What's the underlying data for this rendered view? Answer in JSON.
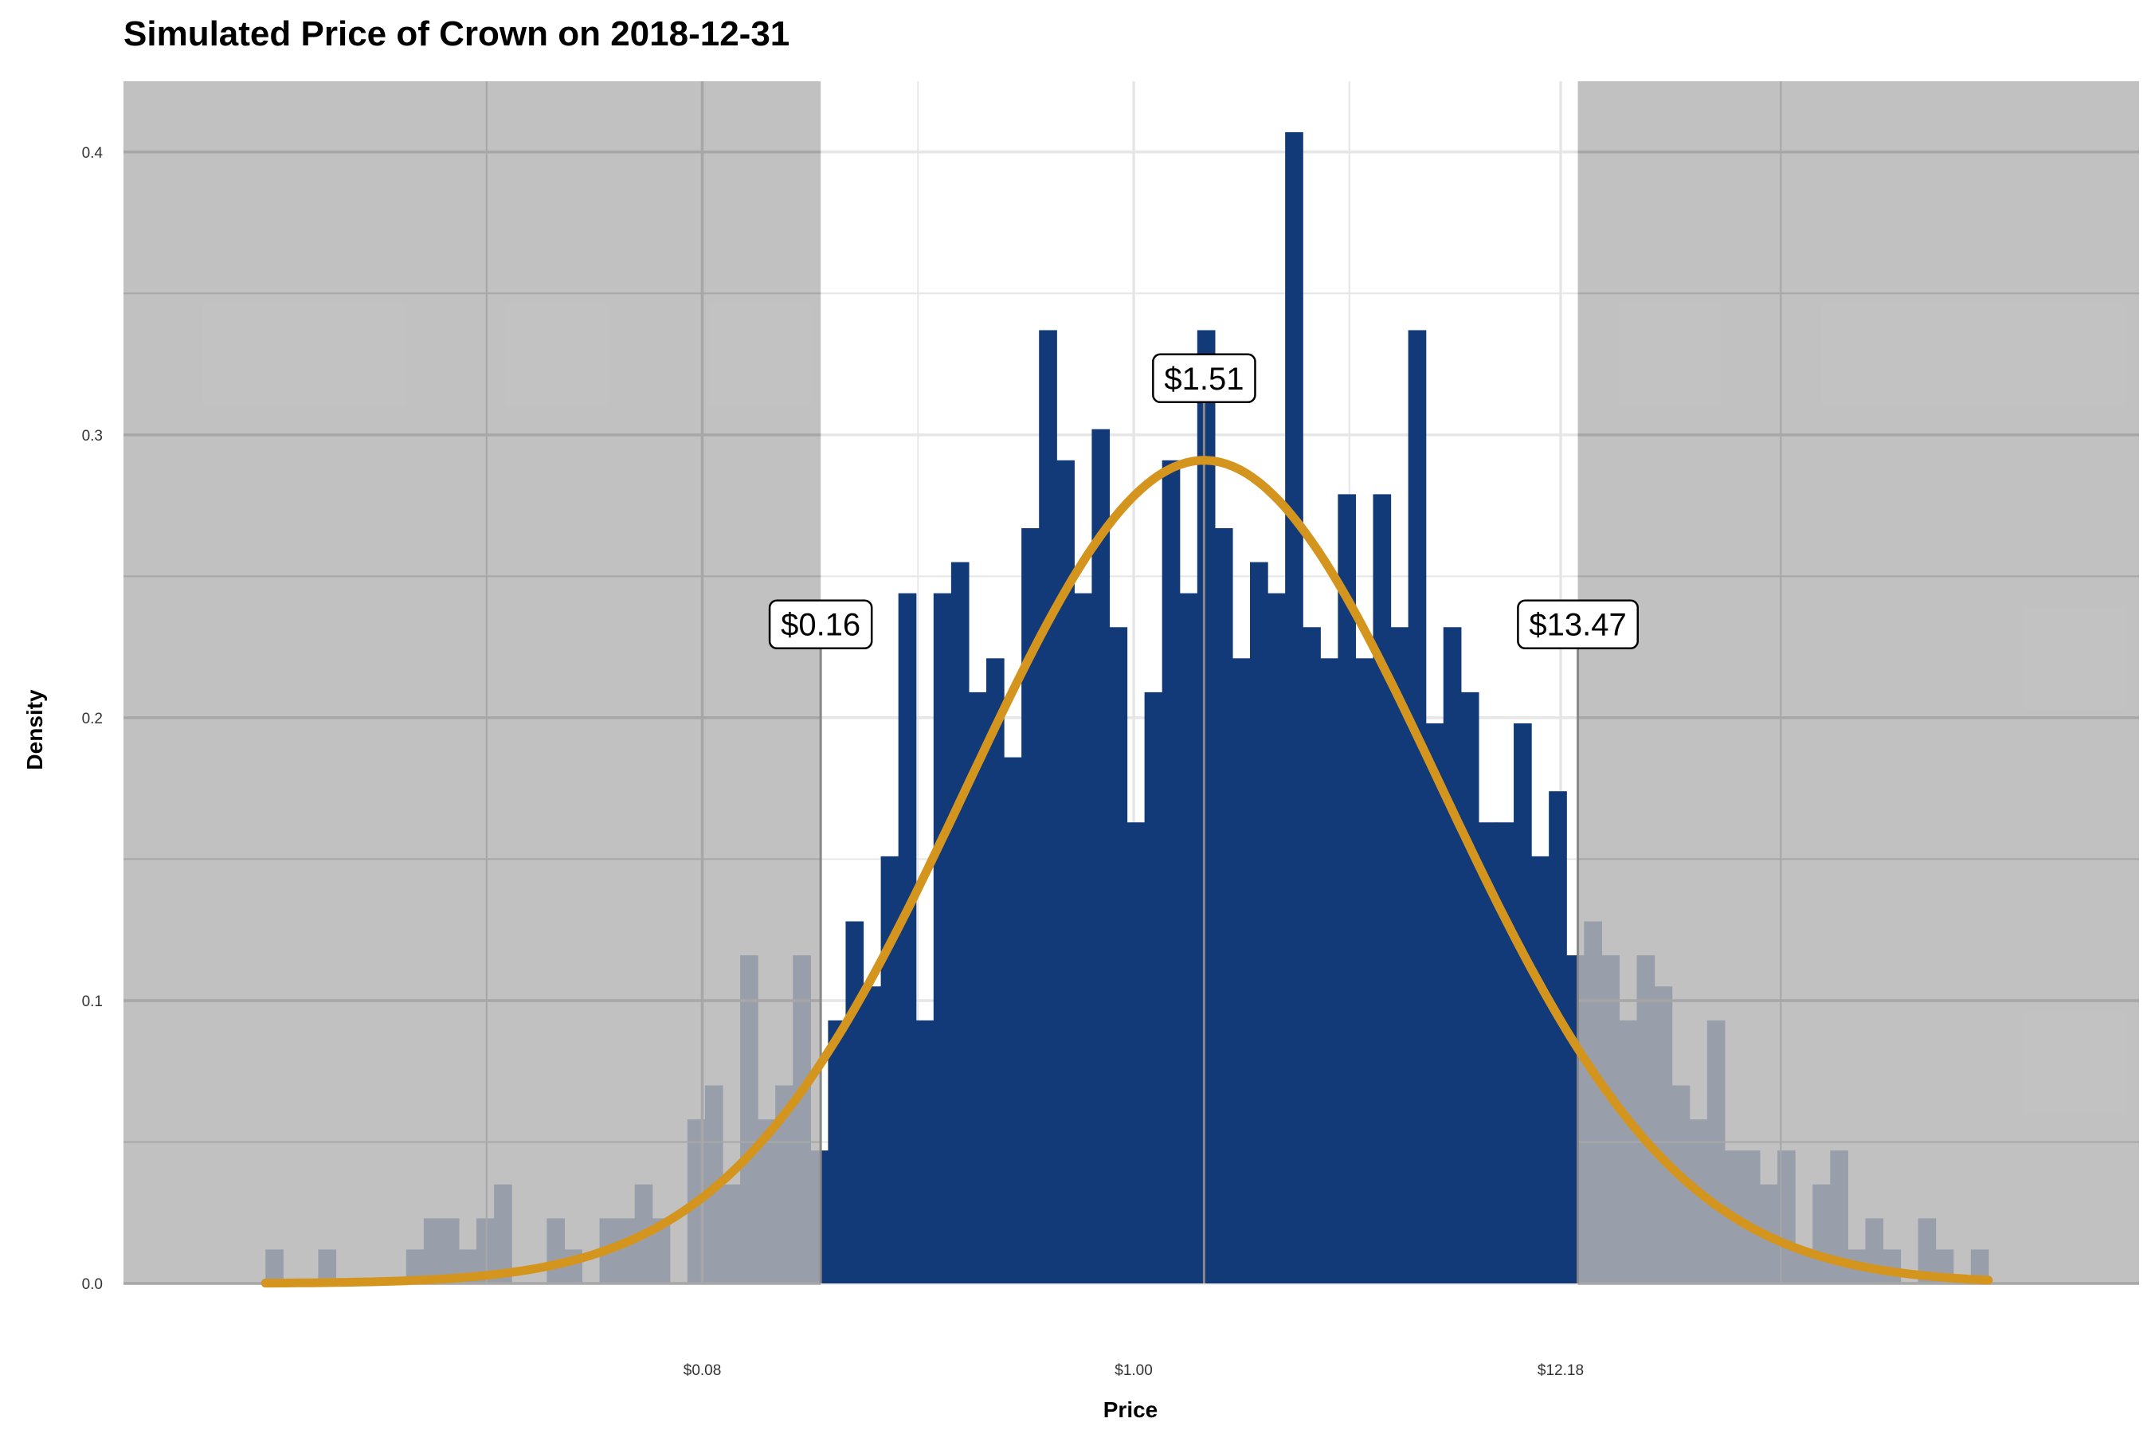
{
  "chart_data": {
    "type": "bar",
    "title": "Simulated Price of Crown on 2018-12-31",
    "xlabel": "Price",
    "ylabel": "Density",
    "ylim": [
      0,
      0.425
    ],
    "log_scale_x": true,
    "y_ticks": [
      "0.0",
      "0.1",
      "0.2",
      "0.3",
      "0.4"
    ],
    "x_ticks": [
      {
        "label": "$0.08",
        "value": 0.08
      },
      {
        "label": "$1.00",
        "value": 1.0
      },
      {
        "label": "$12.18",
        "value": 12.18
      }
    ],
    "x_range": [
      0.0027,
      360
    ],
    "bins": {
      "start": 0.0062,
      "end": 149,
      "densities": [
        0.012,
        0.0,
        0.0,
        0.012,
        0.0,
        0.0,
        0.0,
        0.0,
        0.012,
        0.023,
        0.023,
        0.012,
        0.023,
        0.035,
        0.0,
        0.0,
        0.023,
        0.012,
        0.0,
        0.023,
        0.023,
        0.035,
        0.023,
        0.0,
        0.058,
        0.07,
        0.035,
        0.116,
        0.058,
        0.07,
        0.116,
        0.047,
        0.093,
        0.128,
        0.105,
        0.151,
        0.244,
        0.093,
        0.244,
        0.255,
        0.209,
        0.221,
        0.186,
        0.267,
        0.337,
        0.291,
        0.244,
        0.302,
        0.232,
        0.163,
        0.209,
        0.291,
        0.244,
        0.337,
        0.267,
        0.221,
        0.255,
        0.244,
        0.407,
        0.232,
        0.221,
        0.279,
        0.221,
        0.279,
        0.232,
        0.337,
        0.198,
        0.232,
        0.209,
        0.163,
        0.163,
        0.198,
        0.151,
        0.174,
        0.116,
        0.128,
        0.116,
        0.093,
        0.116,
        0.105,
        0.07,
        0.058,
        0.093,
        0.047,
        0.047,
        0.035,
        0.047,
        0.012,
        0.035,
        0.047,
        0.012,
        0.023,
        0.012,
        0.0,
        0.023,
        0.012,
        0.0,
        0.012
      ]
    },
    "density_curve": {
      "peak_price": 1.51,
      "peak_density": 0.291,
      "log10_sd": 0.6
    },
    "shaded_regions": [
      {
        "from": 0.0027,
        "to": 0.16
      },
      {
        "from": 13.47,
        "to": 360
      }
    ],
    "annotations": [
      {
        "label": "$0.16",
        "price": 0.16,
        "density": 0.233
      },
      {
        "label": "$1.51",
        "price": 1.51,
        "density": 0.32
      },
      {
        "label": "$13.47",
        "price": 13.47,
        "density": 0.233
      }
    ],
    "grid": true,
    "colors": {
      "bars": "#133a78",
      "curve": "#d4951f",
      "shade": "#b5b5b5",
      "grid": "#e6e6e6",
      "grid_shaded": "#a7a7a7",
      "vline": "#888888"
    }
  }
}
